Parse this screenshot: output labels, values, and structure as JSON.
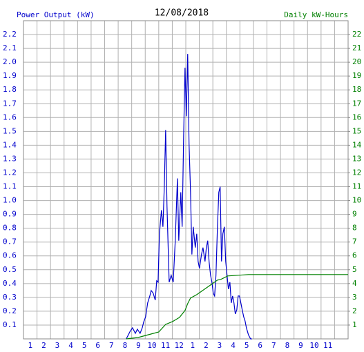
{
  "chart_data": {
    "type": "line",
    "title": "12/08/2018",
    "ylabel": "Power Output (kW)",
    "y2label": "Daily kW-Hours",
    "ylabel_color": "#0000cc",
    "y2label_color": "#008000",
    "xlim": [
      0,
      24
    ],
    "xticks": [
      {
        "value": 0.5,
        "label": "1"
      },
      {
        "value": 1.5,
        "label": "2"
      },
      {
        "value": 2.5,
        "label": "3"
      },
      {
        "value": 3.5,
        "label": "4"
      },
      {
        "value": 4.5,
        "label": "5"
      },
      {
        "value": 5.5,
        "label": "6"
      },
      {
        "value": 6.5,
        "label": "7"
      },
      {
        "value": 7.5,
        "label": "8"
      },
      {
        "value": 8.5,
        "label": "9"
      },
      {
        "value": 9.5,
        "label": "10"
      },
      {
        "value": 10.5,
        "label": "11"
      },
      {
        "value": 11.5,
        "label": "12"
      },
      {
        "value": 12.5,
        "label": "1"
      },
      {
        "value": 13.5,
        "label": "2"
      },
      {
        "value": 14.5,
        "label": "3"
      },
      {
        "value": 15.5,
        "label": "4"
      },
      {
        "value": 16.5,
        "label": "5"
      },
      {
        "value": 17.5,
        "label": "6"
      },
      {
        "value": 18.5,
        "label": "7"
      },
      {
        "value": 19.5,
        "label": "8"
      },
      {
        "value": 20.5,
        "label": "9"
      },
      {
        "value": 21.5,
        "label": "10"
      },
      {
        "value": 22.5,
        "label": "11"
      }
    ],
    "ylim": [
      0,
      2.3
    ],
    "yticks": [
      0.1,
      0.2,
      0.3,
      0.4,
      0.5,
      0.6,
      0.7,
      0.8,
      0.9,
      {
        "value": 1,
        "label": "1.0"
      },
      1.1,
      1.2,
      1.3,
      1.4,
      1.5,
      1.6,
      1.7,
      1.8,
      1.9,
      {
        "value": 2,
        "label": "2.0"
      },
      2.1,
      2.2
    ],
    "y2lim": [
      0,
      23
    ],
    "y2ticks": [
      1,
      2,
      3,
      4,
      5,
      6,
      7,
      8,
      9,
      10,
      11,
      12,
      13,
      14,
      15,
      16,
      17,
      18,
      19,
      20,
      21,
      22
    ],
    "grid": true,
    "series": [
      {
        "color": "#0000cc",
        "x": [
          7.6,
          7.86,
          8.06,
          8.27,
          8.42,
          8.62,
          8.78,
          8.88,
          9.03,
          9.18,
          9.34,
          9.44,
          9.59,
          9.74,
          9.85,
          9.95,
          10.05,
          10.2,
          10.31,
          10.41,
          10.51,
          10.61,
          10.77,
          10.92,
          11.07,
          11.22,
          11.38,
          11.48,
          11.63,
          11.73,
          11.84,
          11.94,
          12.04,
          12.14,
          12.24,
          12.35,
          12.45,
          12.55,
          12.7,
          12.81,
          12.91,
          13.01,
          13.16,
          13.27,
          13.42,
          13.52,
          13.62,
          13.72,
          13.83,
          13.93,
          14.03,
          14.13,
          14.23,
          14.34,
          14.44,
          14.54,
          14.64,
          14.74,
          14.85,
          14.95,
          15.05,
          15.15,
          15.26,
          15.36,
          15.46,
          15.56,
          15.66,
          15.77,
          15.87,
          15.97,
          16.07,
          16.17,
          16.28,
          16.38,
          16.48,
          16.63,
          16.79,
          16.89
        ],
        "values": [
          0,
          0.05,
          0.08,
          0.04,
          0.07,
          0.04,
          0.08,
          0.12,
          0.16,
          0.26,
          0.31,
          0.35,
          0.33,
          0.28,
          0.42,
          0.41,
          0.76,
          0.93,
          0.81,
          1.1,
          1.51,
          0.96,
          0.41,
          0.46,
          0.41,
          0.71,
          1.16,
          0.71,
          1.06,
          0.81,
          1.46,
          1.96,
          1.61,
          2.06,
          1.41,
          1.06,
          0.61,
          0.81,
          0.66,
          0.76,
          0.56,
          0.51,
          0.61,
          0.66,
          0.56,
          0.66,
          0.71,
          0.56,
          0.46,
          0.41,
          0.33,
          0.31,
          0.46,
          0.81,
          1.06,
          1.1,
          0.56,
          0.76,
          0.81,
          0.56,
          0.46,
          0.36,
          0.41,
          0.26,
          0.31,
          0.26,
          0.18,
          0.21,
          0.31,
          0.31,
          0.26,
          0.21,
          0.16,
          0.13,
          0.08,
          0.03,
          0,
          0
        ]
      },
      {
        "color": "#008000",
        "axis": "y2",
        "x": [
          7.6,
          8.47,
          9.23,
          10.0,
          10.51,
          11.02,
          11.53,
          11.94,
          12.14,
          12.35,
          12.81,
          13.32,
          13.83,
          14.34,
          14.59,
          15.1,
          15.87,
          16.63,
          24
        ],
        "values": [
          0,
          0.1,
          0.3,
          0.5,
          1.05,
          1.25,
          1.55,
          2.05,
          2.55,
          2.95,
          3.2,
          3.55,
          3.9,
          4.25,
          4.3,
          4.55,
          4.6,
          4.65,
          4.65
        ]
      }
    ]
  }
}
